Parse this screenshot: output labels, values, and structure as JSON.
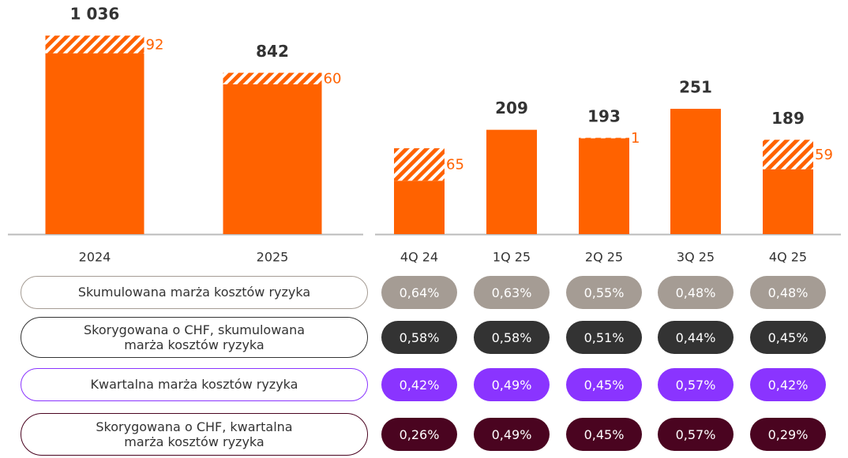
{
  "chart_data": [
    {
      "type": "stacked-bar",
      "categories": [
        "2024",
        "2025"
      ],
      "series": [
        {
          "name": "solid",
          "color": "#ff6200",
          "values": [
            944,
            782
          ]
        },
        {
          "name": "hatched",
          "color": "#ff6200",
          "values": [
            92,
            60
          ]
        }
      ],
      "total_labels": [
        "1 036",
        "842"
      ],
      "ylim": [
        0,
        1222
      ]
    },
    {
      "type": "stacked-bar",
      "categories": [
        "4Q 24",
        "1Q 25",
        "2Q 25",
        "3Q 25",
        "4Q 25"
      ],
      "series": [
        {
          "name": "solid",
          "color": "#ff6200",
          "values": [
            107,
            209,
            192,
            251,
            130
          ]
        },
        {
          "name": "hatched",
          "color": "#ff6200",
          "values": [
            65,
            null,
            1,
            null,
            59
          ]
        }
      ],
      "total_labels": [
        null,
        "209",
        "193",
        "251",
        "189"
      ],
      "ylim": [
        0,
        469
      ]
    }
  ],
  "table": {
    "rows": [
      {
        "label": "Skumulowana marża kosztów ryzyka",
        "color": "#a59c94",
        "values": [
          "0,64%",
          "0,63%",
          "0,55%",
          "0,48%",
          "0,48%"
        ]
      },
      {
        "label": "Skorygowana o CHF, skumulowana marża kosztów ryzyka",
        "color": "#333333",
        "values": [
          "0,58%",
          "0,58%",
          "0,51%",
          "0,44%",
          "0,45%"
        ]
      },
      {
        "label": "Kwartalna marża kosztów ryzyka",
        "color": "#8a34ff",
        "values": [
          "0,42%",
          "0,49%",
          "0,45%",
          "0,57%",
          "0,42%"
        ]
      },
      {
        "label": "Skorygowana o CHF, kwartalna marża kosztów ryzyka",
        "color": "#4a0420",
        "values": [
          "0,26%",
          "0,49%",
          "0,45%",
          "0,57%",
          "0,29%"
        ]
      }
    ]
  }
}
